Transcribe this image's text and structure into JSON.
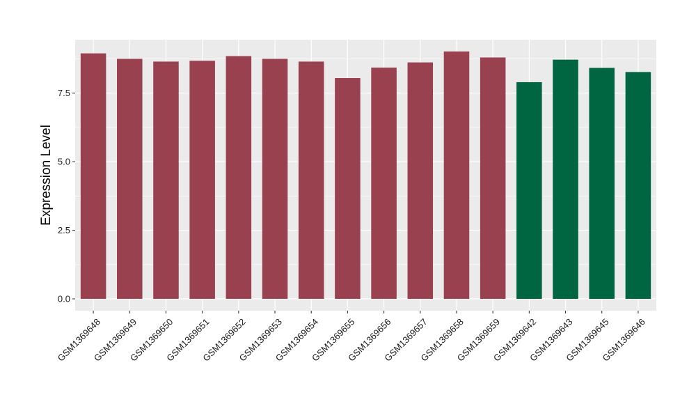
{
  "chart_data": {
    "type": "bar",
    "title": "",
    "xlabel": "",
    "ylabel": "Expression Level",
    "ylim": [
      0,
      9.45
    ],
    "yticks": [
      0.0,
      2.5,
      5.0,
      7.5
    ],
    "ytick_labels": [
      "0.0",
      "2.5",
      "5.0",
      "7.5"
    ],
    "grid": true,
    "legend": "none",
    "categories": [
      "GSM1369648",
      "GSM1369649",
      "GSM1369650",
      "GSM1369651",
      "GSM1369652",
      "GSM1369653",
      "GSM1369654",
      "GSM1369655",
      "GSM1369656",
      "GSM1369657",
      "GSM1369658",
      "GSM1369659",
      "GSM1369642",
      "GSM1369643",
      "GSM1369645",
      "GSM1369646"
    ],
    "values": [
      8.95,
      8.75,
      8.65,
      8.68,
      8.85,
      8.75,
      8.65,
      8.05,
      8.43,
      8.62,
      9.02,
      8.8,
      7.9,
      8.72,
      8.42,
      8.27
    ],
    "groups": [
      "group1",
      "group1",
      "group1",
      "group1",
      "group1",
      "group1",
      "group1",
      "group1",
      "group1",
      "group1",
      "group1",
      "group1",
      "group2",
      "group2",
      "group2",
      "group2"
    ],
    "colors": {
      "group1": "#99414F",
      "group2": "#006642",
      "panel_background": "#EBEBEB",
      "grid": "#FFFFFF"
    }
  }
}
